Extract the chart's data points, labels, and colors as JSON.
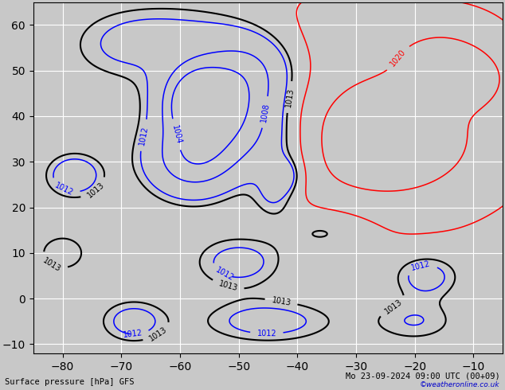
{
  "bottom_left_label": "Surface pressure [hPa] GFS",
  "bottom_right_label": "Mo 23-09-2024 09:00 UTC (00+09)",
  "copyright_label": "©weatheronline.co.uk",
  "bg_color": "#c8c8c8",
  "land_color": "#b8d4a0",
  "land_border_color": "#888888",
  "grid_color": "#ffffff",
  "bottom_label_color": "#000000",
  "copyright_color": "#0000cc",
  "figsize": [
    6.34,
    4.9
  ],
  "dpi": 100,
  "extent_lon_min": -85,
  "extent_lon_max": -5,
  "extent_lat_min": -12,
  "extent_lat_max": 65,
  "grid_lons": [
    -80,
    -70,
    -60,
    -50,
    -40,
    -30,
    -20,
    -10
  ],
  "grid_lats": [
    -10,
    0,
    10,
    20,
    30,
    40,
    50,
    60
  ],
  "tick_lons": [
    -80,
    -70,
    -60,
    -50,
    -40,
    -30,
    -20,
    -10
  ],
  "tick_lats": [
    -10,
    0,
    10,
    20,
    30,
    40,
    50,
    60
  ]
}
